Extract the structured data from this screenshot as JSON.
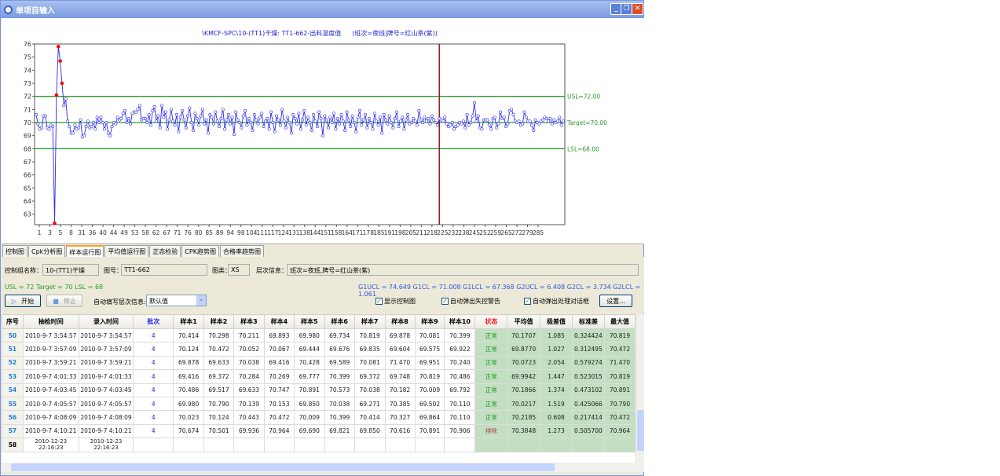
{
  "window": {
    "title": "单项目输入",
    "buttons": [
      "minimize",
      "restore",
      "close"
    ]
  },
  "chart_data": {
    "type": "line",
    "title": "\\KMCF-SPC\\10-(TT1)干燥: TT1-662-出料温度值",
    "subtitle": "(班次=夜班|牌号=红山茶(紫))",
    "ylim": [
      62.2,
      76
    ],
    "yticks": [
      63,
      64,
      65,
      66,
      67,
      68,
      69,
      70,
      71,
      72,
      73,
      74,
      75,
      76
    ],
    "xtick_labels": [
      "1",
      "3",
      "5",
      "8",
      "31",
      "36",
      "40",
      "44",
      "49",
      "53",
      "58",
      "62",
      "67",
      "71",
      "76",
      "80",
      "85",
      "89",
      "94",
      "98",
      "104",
      "111",
      "117",
      "124",
      "131",
      "138",
      "144",
      "151",
      "158",
      "164",
      "171",
      "178",
      "185",
      "191",
      "198",
      "205",
      "211",
      "218",
      "225",
      "232",
      "238",
      "245",
      "252",
      "259",
      "265",
      "272",
      "279",
      "285"
    ],
    "reference_lines": [
      {
        "label": "USL=72.00",
        "value": 72,
        "color": "#2e9a2e"
      },
      {
        "label": "Target=70.00",
        "value": 70,
        "color": "#2e9a2e"
      },
      {
        "label": "LSL=68.00",
        "value": 68,
        "color": "#2e9a2e"
      }
    ],
    "marker_index": 218,
    "series_color": "#2b2bf0",
    "alarm_color": "#ff0000",
    "values": [
      70.6,
      69.9,
      69.5,
      69.6,
      70.5,
      70.5,
      69.6,
      69.5,
      69.8,
      69.7,
      62.3,
      72.1,
      75.8,
      74.7,
      73.0,
      71.3,
      71.8,
      70.1,
      69.7,
      69.2,
      69.2,
      69.8,
      69.5,
      69.6,
      70.2,
      68.9,
      69.0,
      69.7,
      70.1,
      69.6,
      69.7,
      70.0,
      69.5,
      70.4,
      70.0,
      70.4,
      70.0,
      69.5,
      70.0,
      69.2,
      69.0,
      69.7,
      70.0,
      69.9,
      70.4,
      70.2,
      70.3,
      70.7,
      70.9,
      70.0,
      70.3,
      69.9,
      70.7,
      70.8,
      70.8,
      71.0,
      71.3,
      70.2,
      70.3,
      70.3,
      70.0,
      70.6,
      69.8,
      70.9,
      71.2,
      70.1,
      70.5,
      69.6,
      71.3,
      70.4,
      70.8,
      69.5,
      70.2,
      71.0,
      70.1,
      69.8,
      70.6,
      69.3,
      70.4,
      70.9,
      70.2,
      69.6,
      70.5,
      71.1,
      70.0,
      69.4,
      70.7,
      70.3,
      69.8,
      70.5,
      71.0,
      69.9,
      70.2,
      69.2,
      70.6,
      70.4,
      69.9,
      70.8,
      70.1,
      69.7,
      70.3,
      71.0,
      69.5,
      70.2,
      70.6,
      69.9,
      70.4,
      69.1,
      70.8,
      70.2,
      70.0,
      69.6,
      70.5,
      70.9,
      69.8,
      70.3,
      70.0,
      69.4,
      70.6,
      70.2,
      69.9,
      70.4,
      70.7,
      69.7,
      70.1,
      70.3,
      69.5,
      70.8,
      70.0,
      69.3,
      70.5,
      70.2,
      69.8,
      71.0,
      70.1,
      69.6,
      70.4,
      70.0,
      69.2,
      70.6,
      70.3,
      69.9,
      70.7,
      69.5,
      70.2,
      70.9,
      69.8,
      70.4,
      70.0,
      69.4,
      70.6,
      70.1,
      69.7,
      70.8,
      70.3,
      69.0,
      70.5,
      70.2,
      69.6,
      70.4,
      70.0,
      70.7,
      69.5,
      70.3,
      69.9,
      70.6,
      70.1,
      69.4,
      70.8,
      70.2,
      69.7,
      70.5,
      70.0,
      69.3,
      70.4,
      70.9,
      69.8,
      70.2,
      70.6,
      69.6,
      70.3,
      70.0,
      69.5,
      70.7,
      70.1,
      69.8,
      70.4,
      69.2,
      70.6,
      70.2,
      69.9,
      70.5,
      70.0,
      69.6,
      70.3,
      70.8,
      69.7,
      70.1,
      70.4,
      69.5,
      70.2,
      70.6,
      69.9,
      70.0,
      70.3,
      70.1,
      69.8,
      70.9,
      70.2,
      70.0,
      70.4,
      70.1,
      70.3,
      69.9,
      70.5,
      70.2,
      70.0,
      69.8,
      70.3,
      70.2,
      70.1,
      70.4,
      69.9,
      69.7,
      69.8,
      70.0,
      69.5,
      69.7,
      69.8,
      70.0,
      69.9,
      70.1,
      69.6,
      70.6,
      69.8,
      70.0,
      70.5,
      71.5,
      70.1,
      70.5,
      69.6,
      69.5,
      70.2,
      70.2,
      70.2,
      69.8,
      69.5,
      70.3,
      70.4,
      69.6,
      69.9,
      70.8,
      70.3,
      70.4,
      69.7,
      69.9,
      70.9,
      71.0,
      70.6,
      70.1,
      70.0,
      70.1,
      69.8,
      69.9,
      70.8,
      70.4,
      70.1,
      70.1,
      69.8,
      69.4,
      70.2,
      70.0,
      69.9,
      70.1,
      70.2,
      70.4,
      70.3,
      70.1,
      70.3,
      69.9,
      70.2,
      70.0,
      70.1,
      70.4,
      69.8,
      70.1
    ]
  },
  "tabs": [
    {
      "label": "控制图"
    },
    {
      "label": "Cpk分析图"
    },
    {
      "label": "样本运行图",
      "active": true
    },
    {
      "label": "平均值运行图"
    },
    {
      "label": "正态检验"
    },
    {
      "label": "CPK趋势图"
    },
    {
      "label": "合格率趋势图"
    }
  ],
  "panel": {
    "group_label": "控制组名称：",
    "group_value": "10-(TT1)干燥",
    "chart_no_label": "图号：",
    "chart_no_value": "TT1-662",
    "chart_type_label": "图类：",
    "chart_type_value": "XS",
    "level_label": "层次信息：",
    "level_value": "班次=夜班,牌号=红山茶(紫)",
    "spec_text": "USL = 72  Target = 70  LSL = 68",
    "limits_text": "G1UCL = 74.649 G1CL = 71.008 G1LCL = 67.368   G2UCL = 6.408 G2CL = 3.734 G2LCL = 1.061",
    "start_label": "开始",
    "stop_label": "停止",
    "autofill_label": "自动填写层次信息:",
    "autofill_value": "默认值",
    "checkboxes": [
      {
        "label": "显示控制图",
        "checked": true
      },
      {
        "label": "自动弹出失控警告",
        "checked": true
      },
      {
        "label": "自动弹出处理对话框",
        "checked": true
      }
    ],
    "settings_label": "设置..."
  },
  "table": {
    "headers": [
      "序号",
      "抽检时间",
      "录入时间",
      "批次",
      "样本1",
      "样本2",
      "样本3",
      "样本4",
      "样本5",
      "样本6",
      "样本7",
      "样本8",
      "样本9",
      "样本10",
      "状态",
      "平均值",
      "极差值",
      "标准差",
      "最大值"
    ],
    "rows": [
      [
        "50",
        "2010-9-7 3:54:57",
        "2010-9-7 3:54:57",
        "4",
        "70.414",
        "70.298",
        "70.211",
        "69.893",
        "69.980",
        "69.734",
        "70.819",
        "69.878",
        "70.081",
        "70.399",
        "正常",
        "70.1707",
        "1.085",
        "0.324424",
        "70.819"
      ],
      [
        "51",
        "2010-9-7 3:57:09",
        "2010-9-7 3:57:09",
        "4",
        "70.124",
        "70.472",
        "70.052",
        "70.067",
        "69.444",
        "69.676",
        "69.835",
        "69.604",
        "69.575",
        "69.922",
        "正常",
        "69.8770",
        "1.027",
        "0.312495",
        "70.472"
      ],
      [
        "52",
        "2010-9-7 3:59:21",
        "2010-9-7 3:59:21",
        "4",
        "69.878",
        "69.633",
        "70.038",
        "69.416",
        "70.428",
        "69.589",
        "70.081",
        "71.470",
        "69.951",
        "70.240",
        "正常",
        "70.0723",
        "2.054",
        "0.579274",
        "71.470"
      ],
      [
        "53",
        "2010-9-7 4:01:33",
        "2010-9-7 4:01:33",
        "4",
        "69.416",
        "69.372",
        "70.284",
        "70.269",
        "69.777",
        "70.399",
        "69.372",
        "69.748",
        "70.819",
        "70.486",
        "正常",
        "69.9942",
        "1.447",
        "0.523015",
        "70.819"
      ],
      [
        "54",
        "2010-9-7 4:03:45",
        "2010-9-7 4:03:45",
        "4",
        "70.486",
        "69.517",
        "69.633",
        "70.747",
        "70.891",
        "70.573",
        "70.038",
        "70.182",
        "70.009",
        "69.792",
        "正常",
        "70.1866",
        "1.374",
        "0.473102",
        "70.891"
      ],
      [
        "55",
        "2010-9-7 4:05:57",
        "2010-9-7 4:05:57",
        "4",
        "69.980",
        "70.790",
        "70.139",
        "70.153",
        "69.850",
        "70.038",
        "69.271",
        "70.385",
        "69.502",
        "70.110",
        "正常",
        "70.0217",
        "1.519",
        "0.425066",
        "70.790"
      ],
      [
        "56",
        "2010-9-7 4:08:09",
        "2010-9-7 4:08:09",
        "4",
        "70.023",
        "70.124",
        "70.443",
        "70.472",
        "70.009",
        "70.399",
        "70.414",
        "70.327",
        "69.864",
        "70.110",
        "正常",
        "70.2185",
        "0.608",
        "0.217414",
        "70.472"
      ],
      [
        "57",
        "2010-9-7 4:10:21",
        "2010-9-7 4:10:21",
        "4",
        "70.674",
        "70.501",
        "69.936",
        "70.964",
        "69.690",
        "69.821",
        "69.850",
        "70.616",
        "70.891",
        "70.906",
        "排除",
        "70.3848",
        "1.273",
        "0.505700",
        "70.964"
      ],
      [
        "58",
        "2010-12-23 22:16:23",
        "2010-12-23 22:16:23",
        "",
        "",
        "",
        "",
        "",
        "",
        "",
        "",
        "",
        "",
        "",
        "",
        "",
        "",
        "",
        ""
      ]
    ]
  }
}
